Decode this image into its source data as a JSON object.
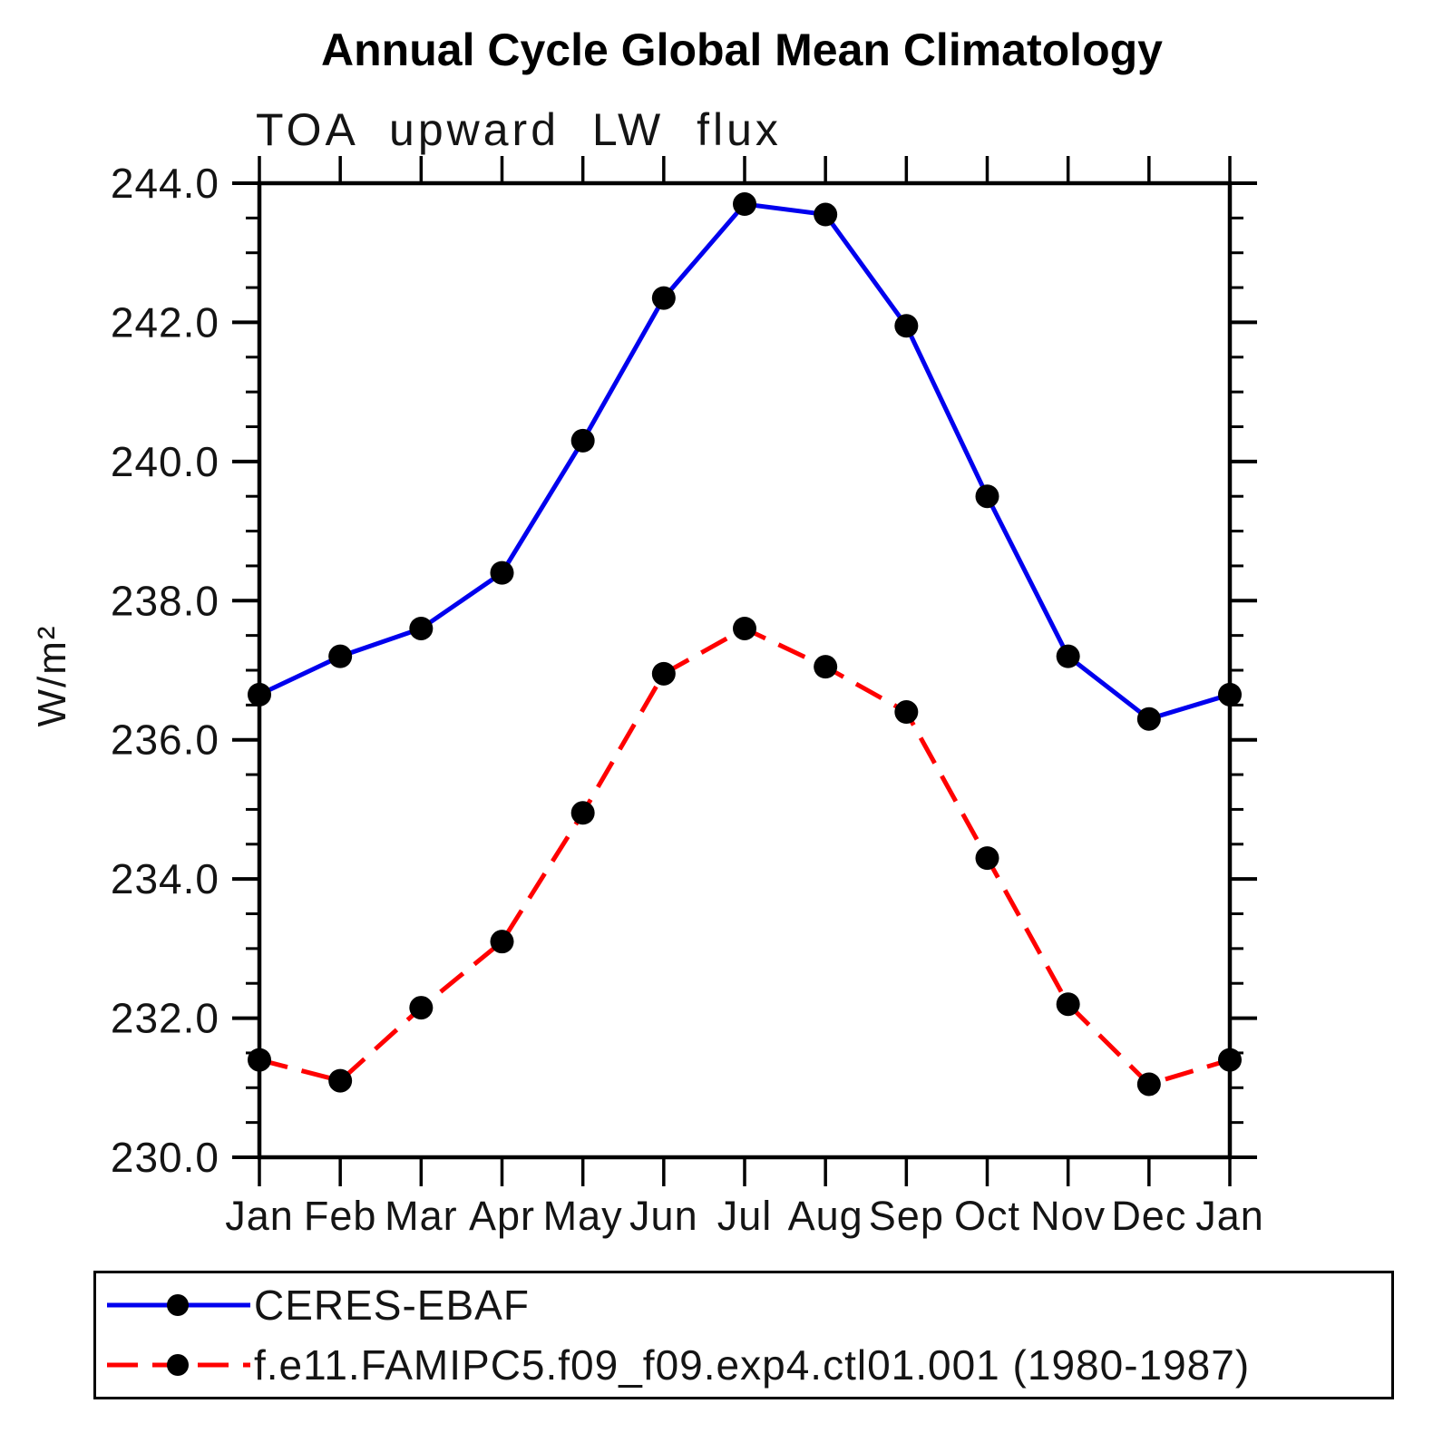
{
  "title": "Annual Cycle Global Mean Climatology",
  "subtitle": "TOA upward LW flux",
  "y_axis_label": "W/m²",
  "chart_data": {
    "type": "line",
    "x_categories": [
      "Jan",
      "Feb",
      "Mar",
      "Apr",
      "May",
      "Jun",
      "Jul",
      "Aug",
      "Sep",
      "Oct",
      "Nov",
      "Dec",
      "Jan"
    ],
    "xlabel": "",
    "ylabel": "W/m²",
    "ylim": [
      230.0,
      244.0
    ],
    "y_major_step": 2.0,
    "y_minor_step": 0.5,
    "y_tick_labels": [
      "230.0",
      "232.0",
      "234.0",
      "236.0",
      "238.0",
      "240.0",
      "242.0",
      "244.0"
    ],
    "grid": false,
    "legend_position": "bottom",
    "series": [
      {
        "name": "CERES-EBAF",
        "color": "#0000EE",
        "line_style": "solid",
        "marker": "filled-circle",
        "marker_color": "#000000",
        "values": [
          236.65,
          237.2,
          237.6,
          238.4,
          240.3,
          242.35,
          243.7,
          243.55,
          241.95,
          239.5,
          237.2,
          236.3,
          236.65
        ]
      },
      {
        "name": "f.e11.FAMIPC5.f09_f09.exp4.ctl01.001 (1980-1987)",
        "color": "#FF0000",
        "line_style": "dashed",
        "marker": "filled-circle",
        "marker_color": "#000000",
        "values": [
          231.4,
          231.1,
          232.15,
          233.1,
          234.95,
          236.95,
          237.6,
          237.05,
          236.4,
          234.3,
          232.2,
          231.05,
          231.4
        ]
      }
    ]
  }
}
